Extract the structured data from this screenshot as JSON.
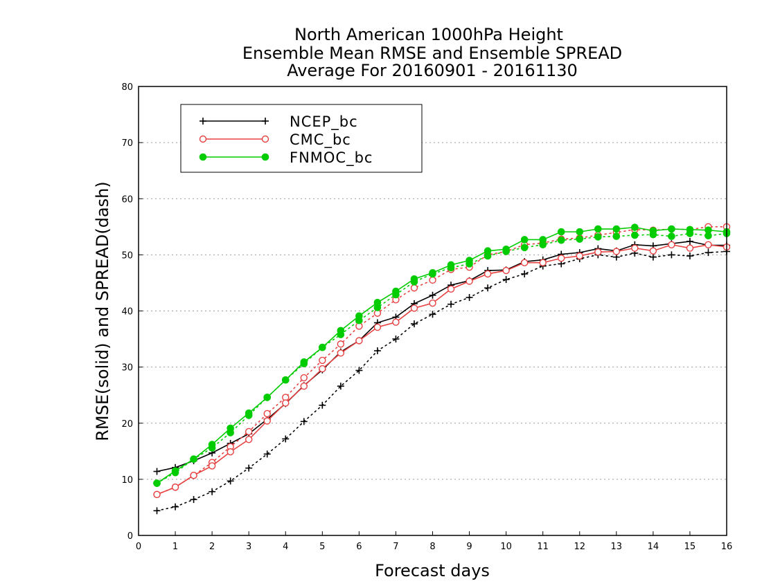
{
  "chart_data": {
    "type": "line",
    "title_lines": [
      "North American 1000hPa Height",
      "Ensemble Mean RMSE and Ensemble SPREAD",
      "Average For 20160901 - 20161130"
    ],
    "xlabel": "Forecast days",
    "ylabel": "RMSE(solid) and SPREAD(dash)",
    "xlim": [
      0,
      16
    ],
    "ylim": [
      0,
      80
    ],
    "xticks": [
      0,
      1,
      2,
      3,
      4,
      5,
      6,
      7,
      8,
      9,
      10,
      11,
      12,
      13,
      14,
      15,
      16
    ],
    "yticks": [
      0,
      10,
      20,
      30,
      40,
      50,
      60,
      70,
      80
    ],
    "grid": "horizontal dotted",
    "legend_position": "top-left",
    "x": [
      0.5,
      1,
      1.5,
      2,
      2.5,
      3,
      3.5,
      4,
      4.5,
      5,
      5.5,
      6,
      6.5,
      7,
      7.5,
      8,
      8.5,
      9,
      9.5,
      10,
      10.5,
      11,
      11.5,
      12,
      12.5,
      13,
      13.5,
      14,
      14.5,
      15,
      15.5,
      16
    ],
    "series": [
      {
        "name": "NCEP_bc",
        "color": "#000000",
        "marker": "plus",
        "rmse": [
          11.4,
          12.1,
          13.3,
          14.7,
          16.4,
          18.1,
          20.7,
          23.5,
          26.7,
          29.5,
          32.7,
          34.7,
          37.9,
          38.9,
          41.3,
          42.8,
          44.6,
          45.4,
          47.2,
          47.3,
          48.8,
          49.1,
          50.1,
          50.4,
          51.1,
          50.7,
          51.8,
          51.6,
          52.0,
          52.4,
          51.7,
          51.7
        ],
        "spread": [
          4.4,
          5.1,
          6.4,
          7.8,
          9.7,
          12.0,
          14.5,
          17.2,
          20.3,
          23.2,
          26.6,
          29.4,
          32.9,
          35.0,
          37.7,
          39.4,
          41.2,
          42.4,
          44.1,
          45.6,
          46.6,
          48.0,
          48.4,
          49.3,
          50.0,
          49.6,
          50.3,
          49.6,
          50.0,
          49.8,
          50.4,
          50.6
        ]
      },
      {
        "name": "CMC_bc",
        "color": "#e84040",
        "marker": "open-circle",
        "rmse": [
          7.3,
          8.6,
          10.7,
          12.4,
          14.9,
          17.1,
          20.4,
          23.6,
          26.6,
          29.7,
          32.5,
          34.7,
          37.1,
          38.0,
          40.5,
          41.4,
          43.9,
          45.3,
          46.6,
          47.2,
          48.6,
          48.6,
          49.4,
          49.8,
          50.5,
          50.6,
          51.2,
          50.7,
          51.8,
          51.2,
          51.8,
          51.4
        ],
        "spread": [
          7.3,
          8.6,
          10.7,
          13.0,
          15.8,
          18.5,
          21.7,
          24.6,
          28.1,
          31.2,
          34.1,
          37.3,
          39.6,
          42.0,
          44.1,
          45.5,
          47.4,
          47.8,
          50.0,
          50.6,
          51.8,
          52.1,
          52.8,
          53.0,
          53.5,
          54.0,
          54.5,
          54.4,
          54.6,
          54.5,
          55.0,
          55.0
        ]
      },
      {
        "name": "FNMOC_bc",
        "color": "#00cc00",
        "marker": "filled-circle",
        "rmse": [
          9.3,
          11.5,
          13.6,
          16.2,
          19.1,
          21.8,
          24.6,
          27.7,
          30.9,
          33.5,
          36.5,
          39.1,
          41.5,
          43.5,
          45.7,
          46.8,
          48.2,
          49.0,
          50.7,
          51.0,
          52.7,
          52.7,
          54.1,
          54.1,
          54.6,
          54.6,
          54.9,
          54.3,
          54.6,
          54.5,
          54.4,
          54.1
        ],
        "spread": [
          9.3,
          11.2,
          13.6,
          15.6,
          18.3,
          21.4,
          24.6,
          27.7,
          30.6,
          33.5,
          35.8,
          38.3,
          40.6,
          42.9,
          45.2,
          46.6,
          47.7,
          48.4,
          49.8,
          50.6,
          51.3,
          51.8,
          52.6,
          52.8,
          53.2,
          53.3,
          53.5,
          53.6,
          53.3,
          53.8,
          53.4,
          53.8
        ]
      }
    ]
  }
}
